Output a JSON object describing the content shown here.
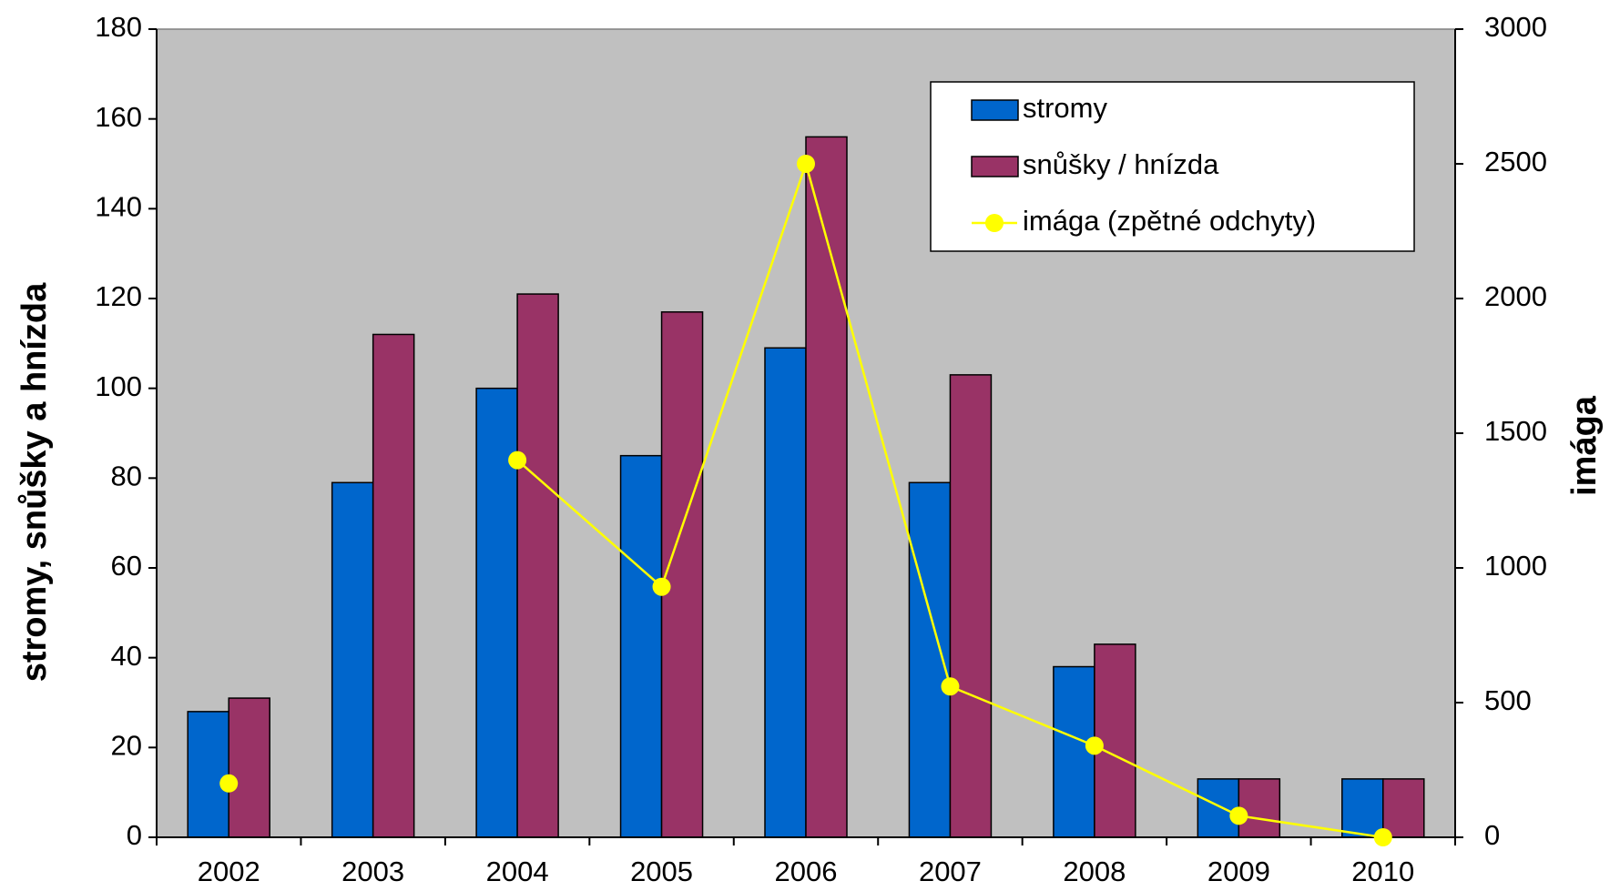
{
  "chart_data": {
    "type": "bar",
    "categories": [
      "2002",
      "2003",
      "2004",
      "2005",
      "2006",
      "2007",
      "2008",
      "2009",
      "2010"
    ],
    "series": [
      {
        "name": "stromy",
        "color": "#0066cc",
        "values": [
          28,
          79,
          100,
          85,
          109,
          79,
          38,
          13,
          13
        ]
      },
      {
        "name": "snůšky / hnízda",
        "color": "#993366",
        "values": [
          31,
          112,
          121,
          117,
          156,
          103,
          43,
          13,
          13
        ]
      },
      {
        "name": "imága (zpětné odchyty)",
        "color": "#ffff00",
        "type": "line",
        "axis": "y2",
        "values": [
          200,
          null,
          1400,
          930,
          2500,
          560,
          340,
          80,
          0
        ]
      }
    ],
    "y_label": "stromy, snůšky a hnízda",
    "y2_label": "imága",
    "ylim": [
      0,
      180
    ],
    "yticks": [
      0,
      20,
      40,
      60,
      80,
      100,
      120,
      140,
      160,
      180
    ],
    "y2lim": [
      0,
      3000
    ],
    "y2ticks": [
      0,
      500,
      1000,
      1500,
      2000,
      2500,
      3000
    ],
    "legend": "top-right",
    "plot_background": "#c0c0c0"
  }
}
